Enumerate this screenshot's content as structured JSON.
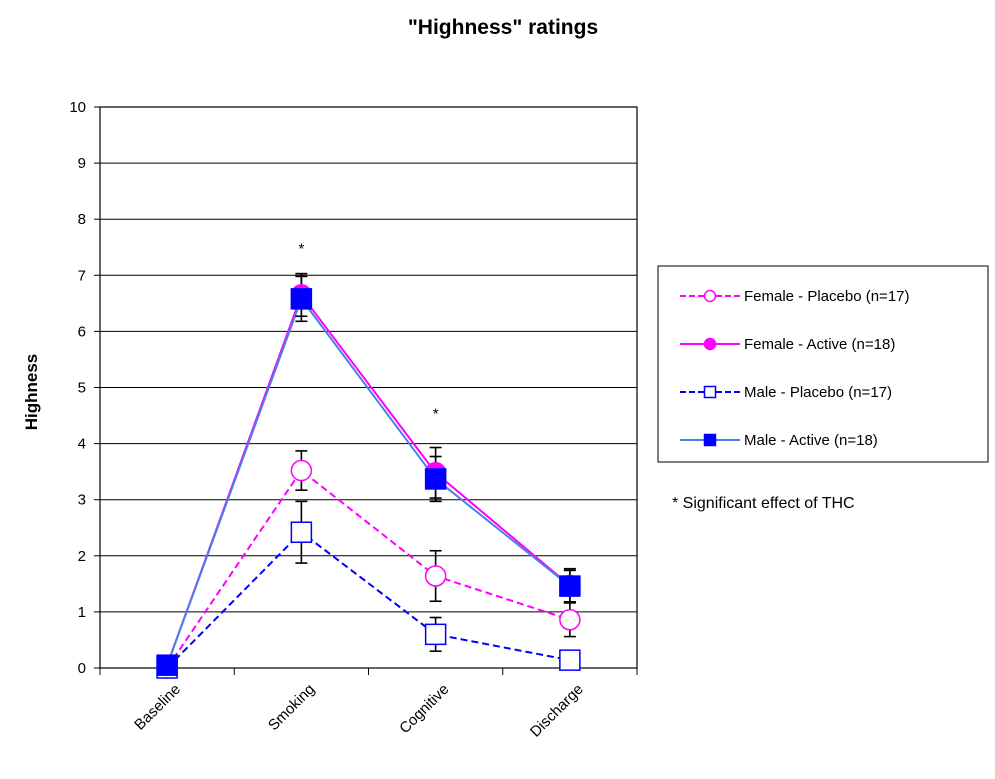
{
  "chart_data": {
    "type": "line",
    "title": "\"Highness\" ratings",
    "xlabel": "",
    "ylabel": "Highness",
    "categories": [
      "Baseline",
      "Smoking",
      "Cognitive",
      "Discharge"
    ],
    "ylim": [
      0,
      10
    ],
    "yticks": [
      "0",
      "1",
      "2",
      "3",
      "4",
      "5",
      "6",
      "7",
      "8",
      "9",
      "10"
    ],
    "grid": "horizontal",
    "legend_placement": "right",
    "series": [
      {
        "name": "Female - Placebo (n=17)",
        "color": "#ff00ff",
        "dash": "dashed",
        "marker": "open-circle",
        "values": [
          0.0,
          3.52,
          1.64,
          0.86
        ],
        "errors": [
          0,
          0.35,
          0.45,
          0.3
        ]
      },
      {
        "name": "Female - Active (n=18)",
        "color": "#ff00ff",
        "dash": "solid",
        "marker": "filled-circle",
        "values": [
          0.05,
          6.65,
          3.48,
          1.47
        ],
        "errors": [
          0,
          0.38,
          0.45,
          0.3
        ]
      },
      {
        "name": "Male - Placebo (n=17)",
        "color": "#0000ff",
        "dash": "dashed",
        "marker": "open-square",
        "values": [
          0.0,
          2.42,
          0.6,
          0.14
        ],
        "errors": [
          0,
          0.55,
          0.3,
          0
        ]
      },
      {
        "name": "Male - Active (n=18)",
        "color": "#4a7fe8",
        "dash": "solid",
        "marker": "filled-square",
        "values": [
          0.05,
          6.58,
          3.37,
          1.46
        ],
        "errors": [
          0,
          0.4,
          0.4,
          0.28
        ]
      }
    ],
    "annotations": [
      {
        "text": "*",
        "category": "Smoking",
        "y": 7.5
      },
      {
        "text": "*",
        "category": "Cognitive",
        "y": 4.55
      }
    ],
    "note": "* Significant effect of THC"
  }
}
